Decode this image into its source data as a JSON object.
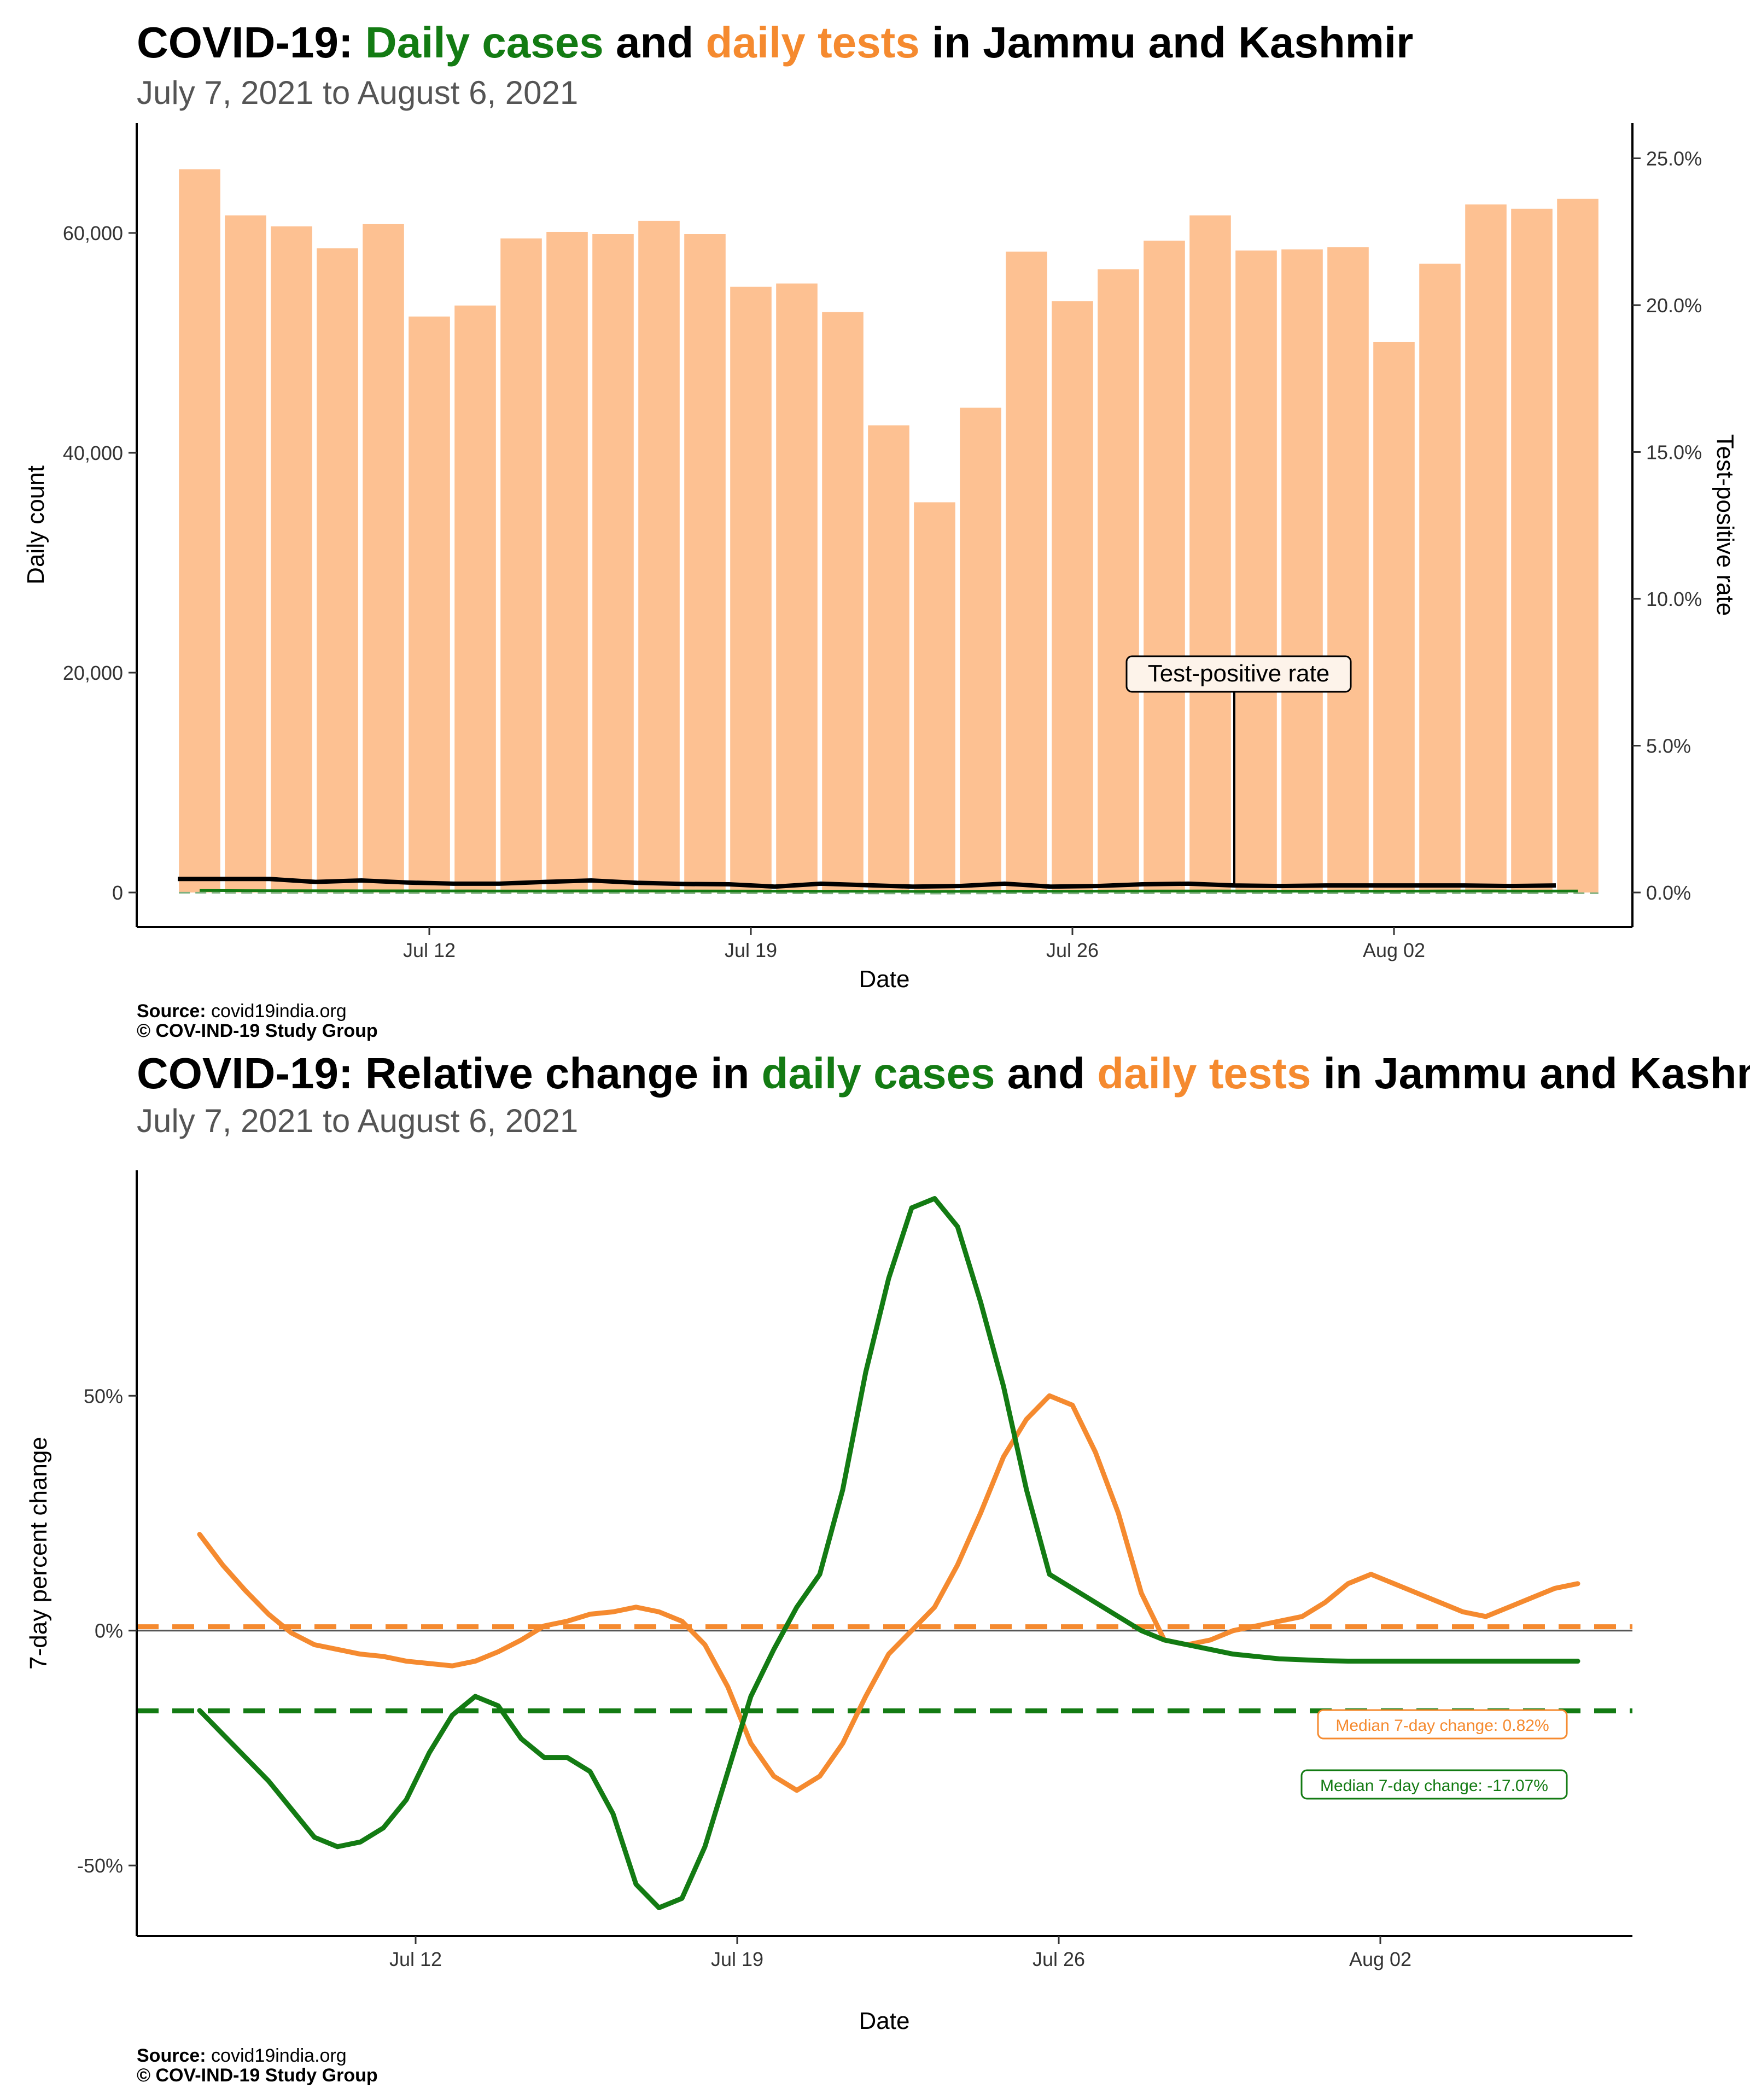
{
  "chart_data": [
    {
      "type": "bar",
      "title_parts": [
        "COVID-19: ",
        "Daily cases",
        " and ",
        "daily tests",
        " in Jammu and Kashmir"
      ],
      "subtitle": "July  7, 2021 to August  6, 2021",
      "xlabel": "Date",
      "ylabel": "Daily count",
      "y2label": "Test-positive rate",
      "ylim": [
        0,
        70000
      ],
      "y2lim": [
        0,
        26.2
      ],
      "y_ticks": [
        0,
        20000,
        40000,
        60000
      ],
      "y_tick_labels": [
        "0",
        "20,000",
        "40,000",
        "60,000"
      ],
      "y2_ticks": [
        0,
        5,
        10,
        15,
        20,
        25
      ],
      "y2_tick_labels": [
        "0.0%",
        "5.0%",
        "10.0%",
        "15.0%",
        "20.0%",
        "25.0%"
      ],
      "x_tick_labels": [
        "Jul 12",
        "Jul 19",
        "Jul 26",
        "Aug 02"
      ],
      "x_tick_day_index": [
        5,
        12,
        19,
        26
      ],
      "categories": [
        "Jul 7",
        "Jul 8",
        "Jul 9",
        "Jul 10",
        "Jul 11",
        "Jul 12",
        "Jul 13",
        "Jul 14",
        "Jul 15",
        "Jul 16",
        "Jul 17",
        "Jul 18",
        "Jul 19",
        "Jul 20",
        "Jul 21",
        "Jul 22",
        "Jul 23",
        "Jul 24",
        "Jul 25",
        "Jul 26",
        "Jul 27",
        "Jul 28",
        "Jul 29",
        "Jul 30",
        "Jul 31",
        "Aug 1",
        "Aug 2",
        "Aug 3",
        "Aug 4",
        "Aug 5",
        "Aug 6"
      ],
      "series": [
        {
          "name": "daily tests",
          "color": "#fdc192",
          "values": [
            65800,
            61600,
            60600,
            58600,
            60800,
            52400,
            53400,
            59500,
            60100,
            59900,
            61100,
            59900,
            55100,
            55400,
            52800,
            42500,
            35500,
            44100,
            58300,
            53800,
            56700,
            59300,
            61600,
            58400,
            58500,
            58700,
            50100,
            57200,
            62600,
            62200,
            63100
          ]
        },
        {
          "name": "daily cases",
          "color": "#137b13",
          "values": [
            180,
            170,
            160,
            155,
            150,
            145,
            140,
            135,
            140,
            150,
            145,
            135,
            130,
            125,
            120,
            110,
            100,
            115,
            125,
            120,
            130,
            135,
            140,
            130,
            125,
            130,
            125,
            135,
            140,
            130,
            135
          ]
        },
        {
          "name": "test-positive rate (%)",
          "color": "#000000",
          "values": [
            0.46,
            0.46,
            0.46,
            0.36,
            0.41,
            0.34,
            0.3,
            0.3,
            0.36,
            0.41,
            0.33,
            0.29,
            0.28,
            0.2,
            0.3,
            0.25,
            0.2,
            0.22,
            0.3,
            0.2,
            0.22,
            0.28,
            0.3,
            0.24,
            0.22,
            0.24,
            0.24,
            0.24,
            0.24,
            0.22,
            0.24
          ]
        }
      ],
      "annotation": "Test-positive rate",
      "annotation_day_index": 23.0,
      "source_label": "Source:",
      "source": " covid19india.org",
      "copyright": "© COV-IND-19 Study Group"
    },
    {
      "type": "line",
      "title_parts": [
        "COVID-19: Relative change in ",
        "daily cases",
        " and ",
        "daily tests",
        " in Jammu and Kashmir"
      ],
      "subtitle": "July  7, 2021 to August  6, 2021",
      "xlabel": "Date",
      "ylabel": "7-day percent change",
      "ylim": [
        -65,
        98
      ],
      "y_ticks": [
        -50,
        0,
        50
      ],
      "y_tick_labels": [
        "-50%",
        "0%",
        "50%"
      ],
      "x_tick_labels": [
        "Jul 12",
        "Jul 19",
        "Jul 26",
        "Aug 02"
      ],
      "x_tick_day_index": [
        5,
        12,
        19,
        26
      ],
      "series": [
        {
          "name": "daily tests",
          "color": "#f58a2f",
          "x": [
            0,
            0.5,
            1,
            1.5,
            2,
            2.5,
            3,
            3.5,
            4,
            4.5,
            5,
            5.5,
            6,
            6.5,
            7,
            7.5,
            8,
            8.5,
            9,
            9.5,
            10,
            10.5,
            11,
            11.5,
            12,
            12.5,
            13,
            13.5,
            14,
            14.5,
            15,
            15.5,
            16,
            16.5,
            17,
            17.5,
            18,
            18.5,
            19,
            19.5,
            20,
            20.5,
            21,
            21.5,
            22,
            22.5,
            23,
            23.5,
            24,
            24.5,
            25,
            25.5,
            26,
            26.5,
            27,
            27.5,
            28,
            28.5,
            29,
            29.5,
            30
          ],
          "values": [
            20.5,
            14,
            8.5,
            3.5,
            -0.5,
            -3,
            -4,
            -5,
            -5.5,
            -6.5,
            -7,
            -7.5,
            -6.5,
            -4.5,
            -2,
            1,
            2,
            3.5,
            4,
            5,
            4,
            2,
            -3,
            -12,
            -24,
            -31,
            -34,
            -31,
            -24,
            -14,
            -5,
            0,
            5,
            14,
            25,
            37,
            45,
            50,
            48,
            38,
            25,
            8,
            -2,
            -3,
            -2,
            0,
            1,
            2,
            3,
            6,
            10,
            12,
            10,
            8,
            6,
            4,
            3,
            5,
            7,
            9,
            10
          ],
          "median": 0.82,
          "median_label": "Median 7-day change: 0.82%"
        },
        {
          "name": "daily cases",
          "color": "#137b13",
          "x": [
            0,
            0.5,
            1,
            1.5,
            2,
            2.5,
            3,
            3.5,
            4,
            4.5,
            5,
            5.5,
            6,
            6.5,
            7,
            7.5,
            8,
            8.5,
            9,
            9.5,
            10,
            10.5,
            11,
            11.5,
            12,
            12.5,
            13,
            13.5,
            14,
            14.5,
            15,
            15.5,
            16,
            16.5,
            17,
            17.5,
            18,
            18.5,
            19,
            19.5,
            20,
            20.5,
            21,
            21.5,
            22,
            22.5,
            23,
            23.5,
            24,
            24.5,
            25,
            25.5,
            26,
            26.5,
            27,
            27.5,
            28,
            28.5,
            29,
            29.5,
            30
          ],
          "values": [
            -17,
            -22,
            -27,
            -32,
            -38,
            -44,
            -46,
            -45,
            -42,
            -36,
            -26,
            -18,
            -14,
            -16,
            -23,
            -27,
            -27,
            -30,
            -39,
            -54,
            -59,
            -57,
            -46,
            -30,
            -14,
            -4,
            5,
            12,
            30,
            55,
            75,
            90,
            92,
            86,
            70,
            52,
            30,
            12,
            9,
            6,
            3,
            0,
            -2,
            -3,
            -4,
            -5,
            -5.5,
            -6,
            -6.2,
            -6.4,
            -6.5,
            -6.5,
            -6.5,
            -6.5,
            -6.5,
            -6.5,
            -6.5,
            -6.5,
            -6.5,
            -6.5,
            -6.5
          ],
          "median": -17.07,
          "median_label": "Median 7-day change: -17.07%"
        }
      ],
      "source_label": "Source:",
      "source": " covid19india.org",
      "copyright": "© COV-IND-19 Study Group"
    }
  ],
  "colors": {
    "cases": "#137b13",
    "tests": "#f58a2f",
    "tests_bar": "#fdc192",
    "text": "#000000",
    "subtitle": "#555555"
  }
}
